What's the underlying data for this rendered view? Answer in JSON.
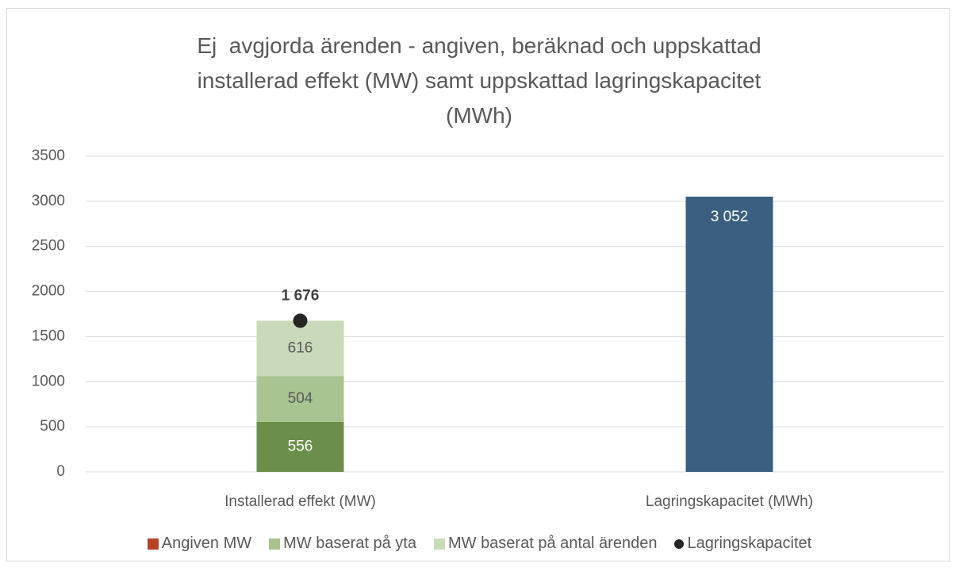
{
  "chart_data": {
    "type": "bar",
    "stacked": true,
    "title": "Ej  avgjorda ärenden - angiven, beräknad och uppskattad installerad effekt (MW) samt uppskattad lagringskapacitet (MWh)",
    "categories": [
      "Installerad effekt (MW)",
      "Lagringskapacitet (MWh)"
    ],
    "series": [
      {
        "name": "Angiven MW",
        "color": "#b5432a",
        "bar_color": "#6b8f4b",
        "label_color": "#ffffff",
        "values": [
          556,
          null
        ]
      },
      {
        "name": "MW baserat på yta",
        "color": "#a8c491",
        "label_color": "#595959",
        "values": [
          504,
          null
        ]
      },
      {
        "name": "MW baserat på antal ärenden",
        "color": "#c9dab8",
        "label_color": "#595959",
        "values": [
          616,
          null
        ]
      },
      {
        "name": "Lagringskapacitet",
        "type": "marker",
        "color": "#262626",
        "label_color": "#404040",
        "values": [
          1676,
          null
        ],
        "value_labels": [
          "1 676",
          null
        ]
      },
      {
        "color": "#3a5f80",
        "label_color": "#ffffff",
        "values": [
          null,
          3052
        ],
        "value_labels": [
          null,
          "3 052"
        ]
      }
    ],
    "ylim": [
      0,
      3500
    ],
    "yticks": [
      0,
      500,
      1000,
      1500,
      2000,
      2500,
      3000,
      3500
    ],
    "grid": true
  }
}
